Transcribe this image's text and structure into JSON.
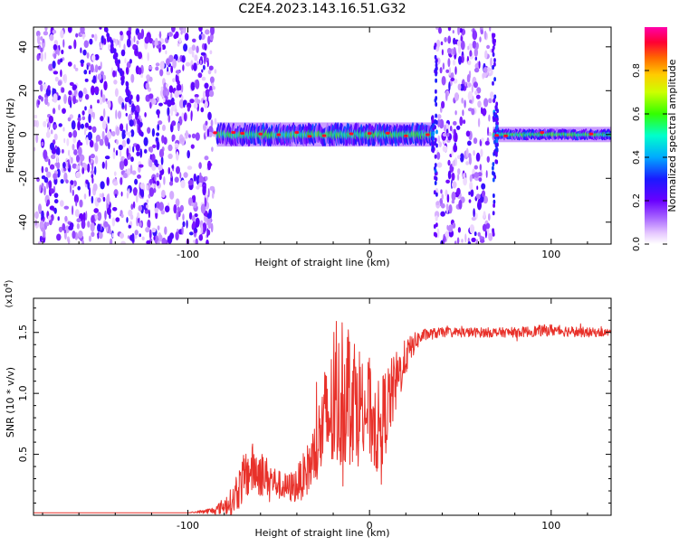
{
  "figure": {
    "title": "C2E4.2023.143.16.51.G32"
  },
  "chart_data": [
    {
      "type": "heatmap",
      "xlabel": "Height of straight line (km)",
      "ylabel": "Frequency (Hz)",
      "xlim": [
        -185,
        133
      ],
      "ylim": [
        -50,
        49
      ],
      "x_ticks": [
        -100,
        0,
        100
      ],
      "y_ticks": [
        -40,
        -20,
        0,
        20,
        40
      ],
      "colorbar": {
        "label": "Normalized spectral amplitude",
        "range": [
          0,
          1
        ],
        "ticks": [
          0.0,
          0.2,
          0.4,
          0.6,
          0.8
        ]
      },
      "regions": [
        {
          "x_range": [
            -185,
            -84
          ],
          "pattern": "broadband noise",
          "diagonal_streak": {
            "from": [
              -145,
              48
            ],
            "to": [
              -125,
              0
            ]
          }
        },
        {
          "x_range": [
            -84,
            35
          ],
          "pattern": "narrow band near 0 Hz",
          "center_hz": 0,
          "half_width_hz": 4
        },
        {
          "x_range": [
            36,
            68
          ],
          "pattern": "broadband noise"
        },
        {
          "x_range": [
            68,
            133
          ],
          "pattern": "narrow band near 0 Hz",
          "center_hz": 0,
          "half_width_hz": 2
        }
      ],
      "band_peaks_x": [
        -85,
        -75,
        -70,
        -60,
        -50,
        -40,
        -33,
        -25,
        -10,
        0,
        10,
        20,
        32,
        70,
        75,
        95,
        122
      ]
    },
    {
      "type": "line",
      "xlabel": "Height of straight line (km)",
      "ylabel": "SNR (10 * v/v)",
      "y_multiplier_label": "(x10",
      "y_multiplier_exponent": "4",
      "y_multiplier_close": ")",
      "xlim": [
        -185,
        133
      ],
      "ylim": [
        0,
        1.78
      ],
      "x_ticks": [
        -100,
        0,
        100
      ],
      "y_ticks": [
        0.5,
        1.0,
        1.5
      ],
      "y_tick_labels": [
        "0.5",
        "1.0",
        "1.5"
      ],
      "series": [
        {
          "color": "#e8312a",
          "x": [
            -185,
            -160,
            -130,
            -100,
            -85,
            -75,
            -70,
            -65,
            -60,
            -55,
            -50,
            -45,
            -40,
            -35,
            -30,
            -25,
            -20,
            -15,
            -12,
            -10,
            -8,
            -5,
            0,
            5,
            10,
            15,
            20,
            25,
            30,
            40,
            60,
            80,
            100,
            120,
            133
          ],
          "y": [
            0.02,
            0.02,
            0.02,
            0.02,
            0.04,
            0.12,
            0.28,
            0.38,
            0.35,
            0.3,
            0.25,
            0.22,
            0.25,
            0.35,
            0.5,
            0.75,
            0.85,
            0.95,
            1.05,
            1.05,
            0.95,
            0.9,
            0.85,
            0.7,
            0.9,
            1.1,
            1.3,
            1.42,
            1.48,
            1.5,
            1.5,
            1.5,
            1.52,
            1.5,
            1.5
          ],
          "noise": [
            0,
            0,
            0,
            0,
            0.03,
            0.12,
            0.2,
            0.22,
            0.2,
            0.15,
            0.12,
            0.12,
            0.15,
            0.2,
            0.3,
            0.45,
            0.55,
            0.6,
            0.6,
            0.6,
            0.55,
            0.5,
            0.45,
            0.4,
            0.35,
            0.25,
            0.15,
            0.08,
            0.05,
            0.04,
            0.04,
            0.04,
            0.05,
            0.04,
            0.03
          ]
        }
      ]
    }
  ]
}
